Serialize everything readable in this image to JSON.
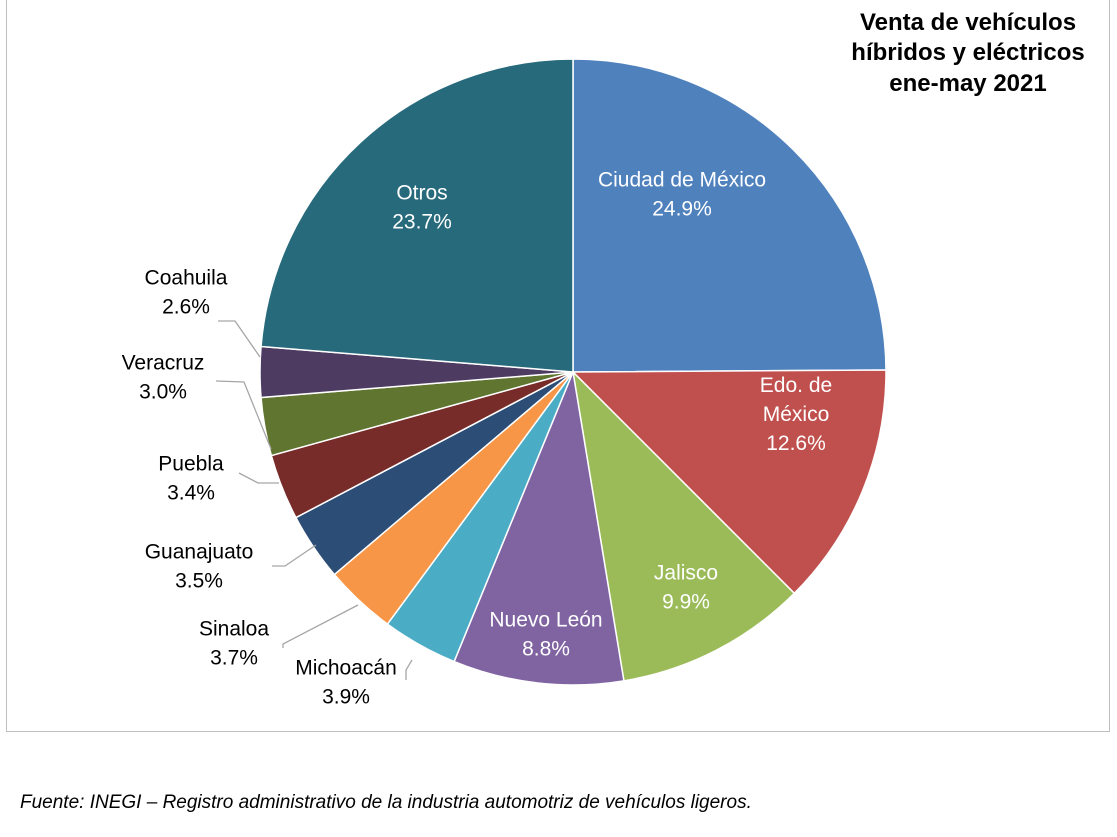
{
  "chart_data": {
    "type": "pie",
    "title": [
      "Venta de vehículos",
      "híbridos y eléctricos",
      "ene-may 2021"
    ],
    "slices": [
      {
        "label": "Ciudad de México",
        "value": 24.9,
        "value_label": "24.9%",
        "color": "#4f81bd"
      },
      {
        "label": "Edo. de México",
        "value": 12.6,
        "value_label": "12.6%",
        "color": "#c0504d"
      },
      {
        "label": "Jalisco",
        "value": 9.9,
        "value_label": "9.9%",
        "color": "#9bbb59"
      },
      {
        "label": "Nuevo León",
        "value": 8.8,
        "value_label": "8.8%",
        "color": "#8064a2"
      },
      {
        "label": "Michoacán",
        "value": 3.9,
        "value_label": "3.9%",
        "color": "#4bacc6"
      },
      {
        "label": "Sinaloa",
        "value": 3.7,
        "value_label": "3.7%",
        "color": "#f79646"
      },
      {
        "label": "Guanajuato",
        "value": 3.5,
        "value_label": "3.5%",
        "color": "#2c4d75"
      },
      {
        "label": "Puebla",
        "value": 3.4,
        "value_label": "3.4%",
        "color": "#772c2a"
      },
      {
        "label": "Veracruz",
        "value": 3.0,
        "value_label": "3.0%",
        "color": "#5f7530"
      },
      {
        "label": "Coahuila",
        "value": 2.6,
        "value_label": "2.6%",
        "color": "#4d3b62"
      },
      {
        "label": "Otros",
        "value": 23.7,
        "value_label": "23.7%",
        "color": "#276a7c"
      }
    ]
  },
  "source_note": "Fuente: INEGI – Registro administrativo de la industria automotriz de vehículos ligeros."
}
